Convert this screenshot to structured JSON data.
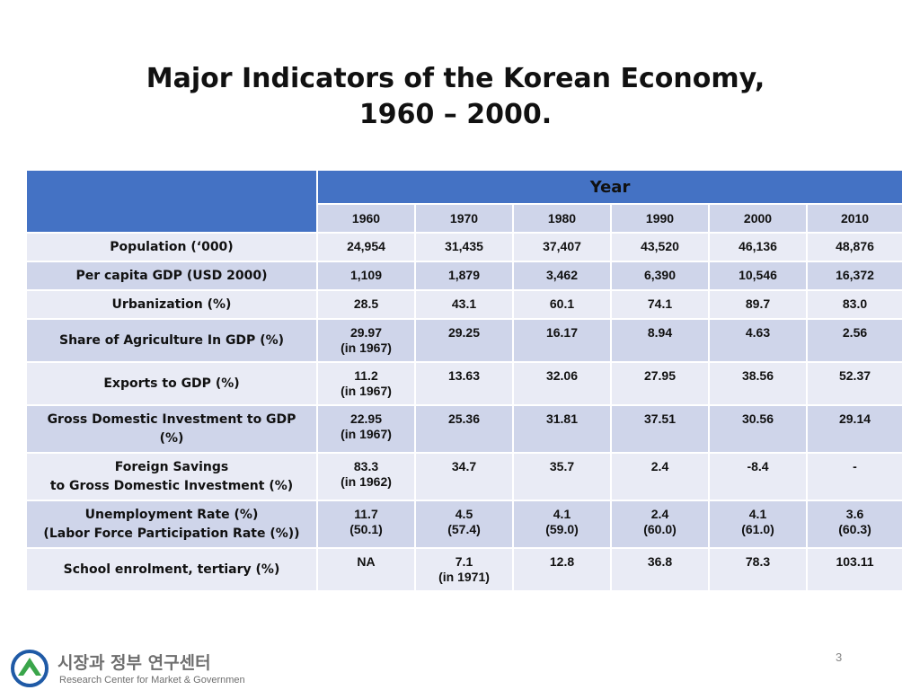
{
  "title": {
    "line1": "Major Indicators of the Korean Economy,",
    "line2": "1960 – 2000."
  },
  "table": {
    "year_header": "Year",
    "years": [
      "1960",
      "1970",
      "1980",
      "1990",
      "2000",
      "2010"
    ],
    "rows": [
      {
        "label": [
          "Population  (‘000)"
        ],
        "cells": [
          [
            "24,954"
          ],
          [
            "31,435"
          ],
          [
            "37,407"
          ],
          [
            "43,520"
          ],
          [
            "46,136"
          ],
          [
            "48,876"
          ]
        ]
      },
      {
        "label": [
          "Per capita GDP (USD 2000)"
        ],
        "cells": [
          [
            "1,109"
          ],
          [
            "1,879"
          ],
          [
            "3,462"
          ],
          [
            "6,390"
          ],
          [
            "10,546"
          ],
          [
            "16,372"
          ]
        ]
      },
      {
        "label": [
          "Urbanization (%)"
        ],
        "cells": [
          [
            "28.5"
          ],
          [
            "43.1"
          ],
          [
            "60.1"
          ],
          [
            "74.1"
          ],
          [
            "89.7"
          ],
          [
            "83.0"
          ]
        ]
      },
      {
        "label": [
          "Share of Agriculture In GDP (%)"
        ],
        "cells": [
          [
            "29.97",
            "(in 1967)"
          ],
          [
            "29.25"
          ],
          [
            "16.17"
          ],
          [
            "8.94"
          ],
          [
            "4.63"
          ],
          [
            "2.56"
          ]
        ]
      },
      {
        "label": [
          "Exports to GDP (%)"
        ],
        "cells": [
          [
            "11.2",
            "(in 1967)"
          ],
          [
            "13.63"
          ],
          [
            "32.06"
          ],
          [
            "27.95"
          ],
          [
            "38.56"
          ],
          [
            "52.37"
          ]
        ]
      },
      {
        "label": [
          "Gross Domestic Investment to GDP",
          "(%)"
        ],
        "cells": [
          [
            "22.95",
            "(in 1967)"
          ],
          [
            "25.36"
          ],
          [
            "31.81"
          ],
          [
            "37.51"
          ],
          [
            "30.56"
          ],
          [
            "29.14"
          ]
        ]
      },
      {
        "label": [
          "Foreign Savings",
          "to Gross Domestic Investment  (%)"
        ],
        "cells": [
          [
            "83.3",
            "(in 1962)"
          ],
          [
            "34.7"
          ],
          [
            "35.7"
          ],
          [
            "2.4"
          ],
          [
            "-8.4"
          ],
          [
            "-"
          ]
        ]
      },
      {
        "label": [
          "Unemployment Rate (%)",
          "(Labor Force Participation Rate (%))"
        ],
        "cells": [
          [
            "11.7",
            "(50.1)"
          ],
          [
            "4.5",
            "(57.4)"
          ],
          [
            "4.1",
            "(59.0)"
          ],
          [
            "2.4",
            "(60.0)"
          ],
          [
            "4.1",
            "(61.0)"
          ],
          [
            "3.6",
            "(60.3)"
          ]
        ]
      },
      {
        "label": [
          "School enrolment, tertiary (%)"
        ],
        "cells": [
          [
            "NA"
          ],
          [
            "7.1",
            "(in 1971)"
          ],
          [
            "12.8"
          ],
          [
            "36.8"
          ],
          [
            "78.3"
          ],
          [
            "103.11"
          ]
        ]
      }
    ]
  },
  "logo": {
    "korean": "시장과 정부 연구센터",
    "english": "Research Center for Market & Government"
  },
  "page_number": "3",
  "colors": {
    "header_blue": "#4472c4",
    "row_dark": "#cfd5ea",
    "row_light": "#e9ebf5",
    "logo_blue": "#1f5aa6",
    "logo_green": "#3aa54a"
  }
}
